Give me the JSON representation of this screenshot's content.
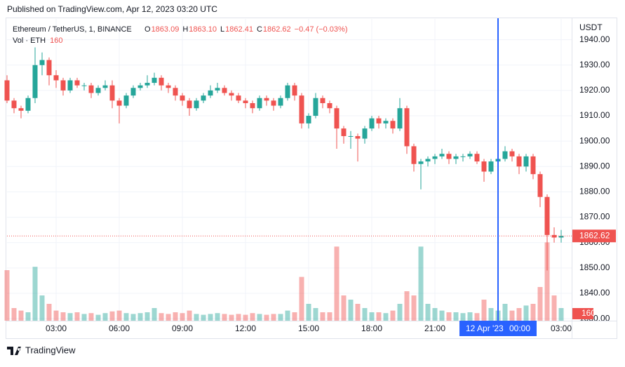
{
  "published": "Published on TradingView.com, Apr 12, 2023 03:20 UTC",
  "brand": "TradingView",
  "chart_data": {
    "type": "candlestick",
    "symbol": "Ethereum / TetherUS, 1, BINANCE",
    "ohlc_legend": [
      {
        "key": "O",
        "value": "1863.09"
      },
      {
        "key": "H",
        "value": "1863.10"
      },
      {
        "key": "L",
        "value": "1862.41"
      },
      {
        "key": "C",
        "value": "1862.62"
      }
    ],
    "change": "−0.47 (−0.03%)",
    "volume_title": "Vol · ETH",
    "volume_last": 160,
    "currency": "USDT",
    "last_price": 1862.62,
    "up_color": "#26a69a",
    "down_color": "#ef5350",
    "open": [
      1924,
      1916,
      1913,
      1912,
      1917,
      1930,
      1932,
      1926,
      1924,
      1920,
      1924,
      1922,
      1922,
      1919,
      1921,
      1922,
      1916,
      1914,
      1918,
      1921,
      1922,
      1923,
      1925,
      1922,
      1921,
      1918,
      1916,
      1913,
      1916,
      1918,
      1920,
      1921,
      1919,
      1918,
      1916,
      1915,
      1913,
      1917,
      1916,
      1914,
      1917,
      1922,
      1918,
      1907,
      1910,
      1917,
      1915,
      1913,
      1905,
      1902,
      1902,
      1901,
      1905,
      1909,
      1907,
      1908,
      1905,
      1913,
      1898,
      1891,
      1892,
      1893,
      1894,
      1895,
      1893,
      1894,
      1894,
      1895,
      1892,
      1888,
      1892,
      1893,
      1896,
      1894,
      1890,
      1894,
      1887,
      1878,
      1863,
      1862
    ],
    "high": [
      1926,
      1917,
      1914,
      1918,
      1937,
      1935,
      1933,
      1928,
      1925,
      1925,
      1925,
      1923,
      1923,
      1922,
      1924,
      1924,
      1917,
      1919,
      1922,
      1923,
      1926,
      1927,
      1926,
      1923,
      1922,
      1919,
      1917,
      1917,
      1919,
      1922,
      1923,
      1922,
      1920,
      1919,
      1917,
      1916,
      1918,
      1918,
      1917,
      1918,
      1923,
      1923,
      1919,
      1911,
      1919,
      1918,
      1916,
      1914,
      1906,
      1904,
      1903,
      1906,
      1910,
      1910,
      1909,
      1909,
      1917,
      1914,
      1899,
      1893,
      1894,
      1895,
      1897,
      1896,
      1895,
      1895,
      1896,
      1896,
      1893,
      1893,
      1894,
      1898,
      1897,
      1895,
      1895,
      1895,
      1888,
      1879,
      1866,
      1865
    ],
    "low": [
      1915,
      1911,
      1909,
      1911,
      1915,
      1926,
      1922,
      1921,
      1918,
      1919,
      1921,
      1920,
      1917,
      1918,
      1920,
      1913,
      1907,
      1913,
      1917,
      1920,
      1921,
      1922,
      1920,
      1919,
      1916,
      1914,
      1910,
      1912,
      1915,
      1917,
      1919,
      1918,
      1916,
      1915,
      1913,
      1911,
      1912,
      1914,
      1912,
      1913,
      1916,
      1916,
      1905,
      1905,
      1909,
      1913,
      1911,
      1897,
      1899,
      1897,
      1892,
      1899,
      1904,
      1905,
      1905,
      1903,
      1904,
      1895,
      1888,
      1881,
      1890,
      1891,
      1893,
      1891,
      1891,
      1892,
      1893,
      1891,
      1884,
      1887,
      1890,
      1892,
      1892,
      1887,
      1888,
      1885,
      1874,
      1849,
      1860,
      1860
    ],
    "close": [
      1916,
      1913,
      1912,
      1917,
      1930,
      1932,
      1926,
      1924,
      1920,
      1924,
      1922,
      1922,
      1919,
      1921,
      1922,
      1916,
      1914,
      1918,
      1921,
      1922,
      1923,
      1925,
      1922,
      1921,
      1918,
      1916,
      1913,
      1916,
      1918,
      1920,
      1921,
      1919,
      1918,
      1916,
      1915,
      1913,
      1917,
      1916,
      1914,
      1917,
      1922,
      1918,
      1907,
      1910,
      1917,
      1915,
      1913,
      1905,
      1902,
      1902,
      1901,
      1905,
      1909,
      1907,
      1908,
      1905,
      1913,
      1898,
      1891,
      1892,
      1893,
      1894,
      1895,
      1893,
      1894,
      1894,
      1895,
      1892,
      1888,
      1892,
      1893,
      1896,
      1894,
      1890,
      1894,
      1887,
      1878,
      1863,
      1862,
      1862.62
    ],
    "volume": [
      600,
      150,
      120,
      100,
      640,
      300,
      200,
      120,
      100,
      90,
      100,
      80,
      90,
      70,
      90,
      110,
      120,
      90,
      80,
      90,
      100,
      150,
      90,
      80,
      100,
      90,
      120,
      80,
      70,
      80,
      90,
      80,
      70,
      80,
      70,
      90,
      80,
      70,
      80,
      80,
      120,
      100,
      520,
      200,
      150,
      100,
      100,
      880,
      300,
      250,
      200,
      150,
      100,
      100,
      90,
      120,
      200,
      350,
      300,
      880,
      200,
      150,
      120,
      100,
      100,
      90,
      100,
      90,
      250,
      150,
      120,
      200,
      120,
      150,
      180,
      200,
      400,
      930,
      300,
      150
    ],
    "volume_lim": [
      0,
      1000
    ],
    "xlim": [
      0,
      80.5
    ],
    "xticks": [
      {
        "value": 7,
        "label": "03:00"
      },
      {
        "value": 16,
        "label": "06:00"
      },
      {
        "value": 25,
        "label": "09:00"
      },
      {
        "value": 34,
        "label": "12:00"
      },
      {
        "value": 43,
        "label": "15:00"
      },
      {
        "value": 52,
        "label": "18:00"
      },
      {
        "value": 61,
        "label": "21:00"
      },
      {
        "value": 79,
        "label": "03:00"
      }
    ],
    "crosshair": {
      "x": 70,
      "date": "12 Apr '23",
      "time": "00:00"
    },
    "ylim": [
      1829.2,
      1948.2
    ],
    "yticks": [
      {
        "value": 1830,
        "label": "1830.00"
      },
      {
        "value": 1840,
        "label": "1840.00"
      },
      {
        "value": 1850,
        "label": "1850.00"
      },
      {
        "value": 1860,
        "label": "1860.00"
      },
      {
        "value": 1870,
        "label": "1870.00"
      },
      {
        "value": 1880,
        "label": "1880.00"
      },
      {
        "value": 1890,
        "label": "1890.00"
      },
      {
        "value": 1900,
        "label": "1900.00"
      },
      {
        "value": 1910,
        "label": "1910.00"
      },
      {
        "value": 1920,
        "label": "1920.00"
      },
      {
        "value": 1930,
        "label": "1930.00"
      },
      {
        "value": 1940,
        "label": "1940.00"
      }
    ],
    "grid": true
  }
}
